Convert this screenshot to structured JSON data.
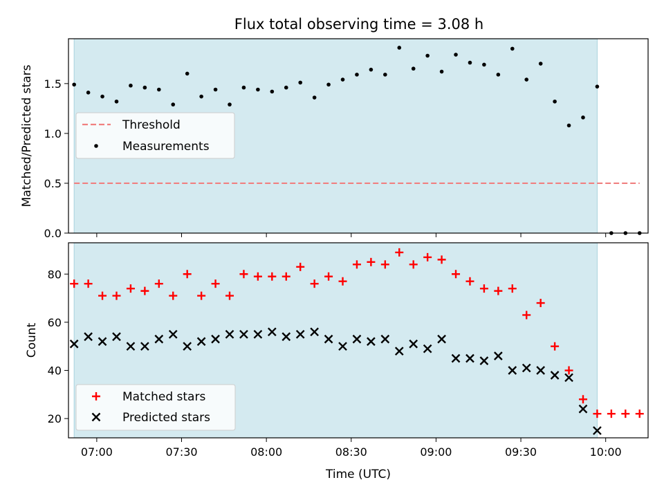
{
  "figure": {
    "title": "Flux total observing time = 3.08 h",
    "xlabel": "Time (UTC)",
    "x_ticks": [
      "07:00",
      "07:30",
      "08:00",
      "08:30",
      "09:00",
      "09:30",
      "10:00"
    ],
    "observing_span_color": "#d4eaf0"
  },
  "chart_data": [
    {
      "type": "scatter",
      "ylabel": "Matched/Predicted stars",
      "ylim": [
        0,
        1.95
      ],
      "y_ticks": [
        "0.0",
        "0.5",
        "1.0",
        "1.5"
      ],
      "observing_window": [
        "06:52",
        "09:57"
      ],
      "threshold": {
        "name": "Threshold",
        "value": 0.5,
        "x_range": [
          "06:52",
          "10:12"
        ],
        "color": "#f08080"
      },
      "legend": {
        "position": "center-left",
        "entries": [
          "Threshold",
          "Measurements"
        ]
      },
      "series": [
        {
          "name": "Measurements",
          "color": "#000000",
          "x": [
            "06:52",
            "06:57",
            "07:02",
            "07:07",
            "07:12",
            "07:17",
            "07:22",
            "07:27",
            "07:32",
            "07:37",
            "07:42",
            "07:47",
            "07:52",
            "07:57",
            "08:02",
            "08:07",
            "08:12",
            "08:17",
            "08:22",
            "08:27",
            "08:32",
            "08:37",
            "08:42",
            "08:47",
            "08:52",
            "08:57",
            "09:02",
            "09:07",
            "09:12",
            "09:17",
            "09:22",
            "09:27",
            "09:32",
            "09:37",
            "09:42",
            "09:47",
            "09:52",
            "09:57",
            "10:02",
            "10:07",
            "10:12"
          ],
          "y": [
            1.49,
            1.41,
            1.37,
            1.32,
            1.48,
            1.46,
            1.44,
            1.29,
            1.6,
            1.37,
            1.44,
            1.29,
            1.46,
            1.44,
            1.42,
            1.46,
            1.51,
            1.36,
            1.49,
            1.54,
            1.59,
            1.64,
            1.59,
            1.86,
            1.65,
            1.78,
            1.62,
            1.79,
            1.71,
            1.69,
            1.59,
            1.85,
            1.54,
            1.7,
            1.32,
            1.08,
            1.16,
            1.47,
            0.0,
            0.0,
            0.0
          ]
        }
      ]
    },
    {
      "type": "scatter",
      "ylabel": "Count",
      "ylim": [
        12,
        93
      ],
      "y_ticks": [
        "20",
        "40",
        "60",
        "80"
      ],
      "observing_window": [
        "06:52",
        "09:57"
      ],
      "legend": {
        "position": "bottom-left",
        "entries": [
          "Matched stars",
          "Predicted stars"
        ]
      },
      "series": [
        {
          "name": "Matched stars",
          "marker": "plus",
          "color": "#ff0000",
          "x": [
            "06:52",
            "06:57",
            "07:02",
            "07:07",
            "07:12",
            "07:17",
            "07:22",
            "07:27",
            "07:32",
            "07:37",
            "07:42",
            "07:47",
            "07:52",
            "07:57",
            "08:02",
            "08:07",
            "08:12",
            "08:17",
            "08:22",
            "08:27",
            "08:32",
            "08:37",
            "08:42",
            "08:47",
            "08:52",
            "08:57",
            "09:02",
            "09:07",
            "09:12",
            "09:17",
            "09:22",
            "09:27",
            "09:32",
            "09:37",
            "09:42",
            "09:47",
            "09:52",
            "09:57",
            "10:02",
            "10:07",
            "10:12"
          ],
          "y": [
            76,
            76,
            71,
            71,
            74,
            73,
            76,
            71,
            80,
            71,
            76,
            71,
            80,
            79,
            79,
            79,
            83,
            76,
            79,
            77,
            84,
            85,
            84,
            89,
            84,
            87,
            86,
            80,
            77,
            74,
            73,
            74,
            63,
            68,
            50,
            40,
            28,
            22,
            22,
            22,
            22
          ]
        },
        {
          "name": "Predicted stars",
          "marker": "x",
          "color": "#000000",
          "x": [
            "06:52",
            "06:57",
            "07:02",
            "07:07",
            "07:12",
            "07:17",
            "07:22",
            "07:27",
            "07:32",
            "07:37",
            "07:42",
            "07:47",
            "07:52",
            "07:57",
            "08:02",
            "08:07",
            "08:12",
            "08:17",
            "08:22",
            "08:27",
            "08:32",
            "08:37",
            "08:42",
            "08:47",
            "08:52",
            "08:57",
            "09:02",
            "09:07",
            "09:12",
            "09:17",
            "09:22",
            "09:27",
            "09:32",
            "09:37",
            "09:42",
            "09:47",
            "09:52",
            "09:57"
          ],
          "y": [
            51,
            54,
            52,
            54,
            50,
            50,
            53,
            55,
            50,
            52,
            53,
            55,
            55,
            55,
            56,
            54,
            55,
            56,
            53,
            50,
            53,
            52,
            53,
            48,
            51,
            49,
            53,
            45,
            45,
            44,
            46,
            40,
            41,
            40,
            38,
            37,
            24,
            15
          ]
        }
      ]
    }
  ]
}
